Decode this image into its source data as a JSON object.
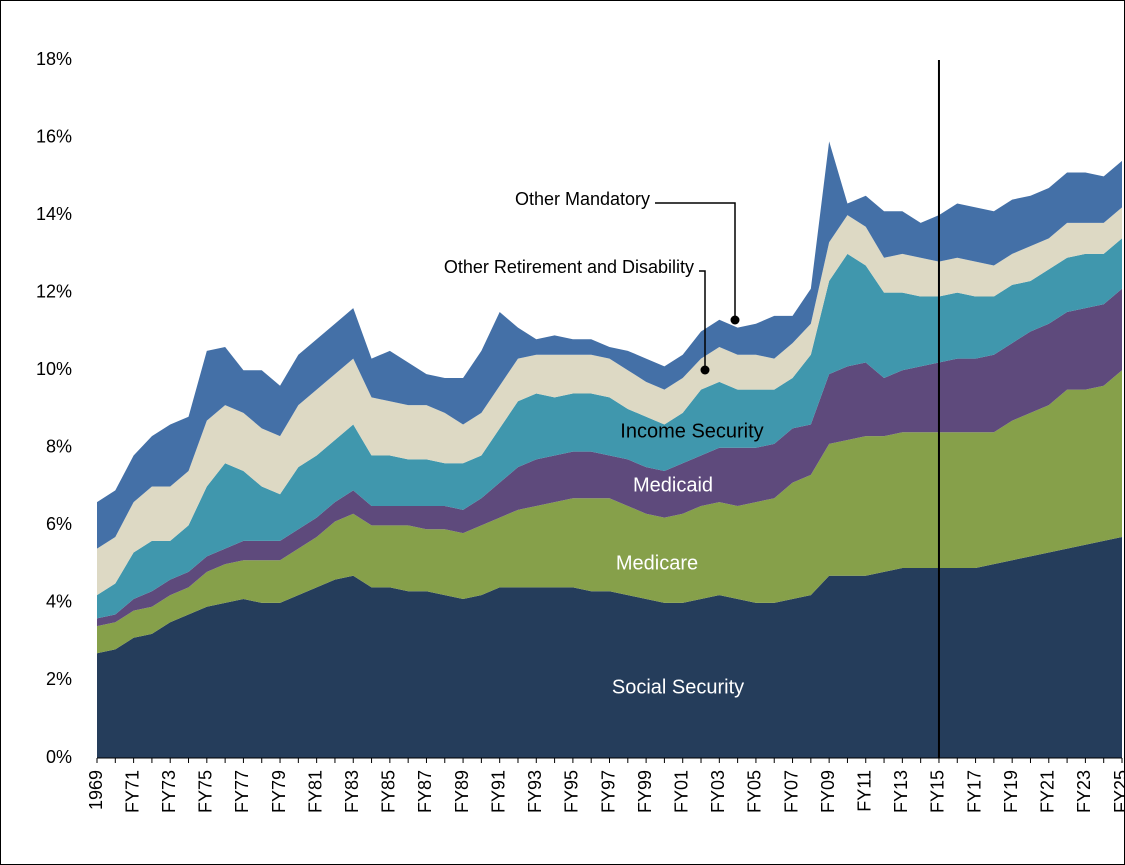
{
  "chart_data": {
    "type": "stacked_area",
    "categories": [
      "1969",
      null,
      "FY71",
      null,
      "FY73",
      null,
      "FY75",
      null,
      "FY77",
      null,
      "FY79",
      null,
      "FY81",
      null,
      "FY83",
      null,
      "FY85",
      null,
      "FY87",
      null,
      "FY89",
      null,
      "FY91",
      null,
      "FY93",
      null,
      "FY95",
      null,
      "FY97",
      null,
      "FY99",
      null,
      "FY01",
      null,
      "FY03",
      null,
      "FY05",
      null,
      "FY07",
      null,
      "FY09",
      null,
      "FY11",
      null,
      "FY13",
      null,
      "FY15",
      null,
      "FY17",
      null,
      "FY19",
      null,
      "FY21",
      null,
      "FY23",
      null,
      "FY25"
    ],
    "series": [
      {
        "name": "Social Security",
        "color": "#253d5b",
        "values": [
          2.7,
          2.8,
          3.1,
          3.2,
          3.5,
          3.7,
          3.9,
          4.0,
          4.1,
          4.0,
          4.0,
          4.2,
          4.4,
          4.6,
          4.7,
          4.4,
          4.4,
          4.3,
          4.3,
          4.2,
          4.1,
          4.2,
          4.4,
          4.4,
          4.4,
          4.4,
          4.4,
          4.3,
          4.3,
          4.2,
          4.1,
          4.0,
          4.0,
          4.1,
          4.2,
          4.1,
          4.0,
          4.0,
          4.1,
          4.2,
          4.7,
          4.7,
          4.7,
          4.8,
          4.9,
          4.9,
          4.9,
          4.9,
          4.9,
          5.0,
          5.1,
          5.2,
          5.3,
          5.4,
          5.5,
          5.6,
          5.7
        ]
      },
      {
        "name": "Medicare",
        "color": "#86a04a",
        "values": [
          0.7,
          0.7,
          0.7,
          0.7,
          0.7,
          0.7,
          0.9,
          1.0,
          1.0,
          1.1,
          1.1,
          1.2,
          1.3,
          1.5,
          1.6,
          1.6,
          1.6,
          1.7,
          1.6,
          1.7,
          1.7,
          1.8,
          1.8,
          2.0,
          2.1,
          2.2,
          2.3,
          2.4,
          2.4,
          2.3,
          2.2,
          2.2,
          2.3,
          2.4,
          2.4,
          2.4,
          2.6,
          2.7,
          3.0,
          3.1,
          3.4,
          3.5,
          3.6,
          3.5,
          3.5,
          3.5,
          3.5,
          3.5,
          3.5,
          3.4,
          3.6,
          3.7,
          3.8,
          4.1,
          4.0,
          4.0,
          4.3
        ]
      },
      {
        "name": "Medicaid",
        "color": "#5e4a7c",
        "values": [
          0.2,
          0.2,
          0.3,
          0.4,
          0.4,
          0.4,
          0.4,
          0.4,
          0.5,
          0.5,
          0.5,
          0.5,
          0.5,
          0.5,
          0.6,
          0.5,
          0.5,
          0.5,
          0.6,
          0.6,
          0.6,
          0.7,
          0.9,
          1.1,
          1.2,
          1.2,
          1.2,
          1.2,
          1.1,
          1.2,
          1.2,
          1.2,
          1.3,
          1.3,
          1.4,
          1.5,
          1.4,
          1.4,
          1.4,
          1.3,
          1.8,
          1.9,
          1.9,
          1.5,
          1.6,
          1.7,
          1.8,
          1.9,
          1.9,
          2.0,
          2.0,
          2.1,
          2.1,
          2.0,
          2.1,
          2.1,
          2.1
        ]
      },
      {
        "name": "Income Security",
        "color": "#4097ad",
        "values": [
          0.6,
          0.8,
          1.2,
          1.3,
          1.0,
          1.2,
          1.8,
          2.2,
          1.8,
          1.4,
          1.2,
          1.6,
          1.6,
          1.6,
          1.7,
          1.3,
          1.3,
          1.2,
          1.2,
          1.1,
          1.2,
          1.1,
          1.4,
          1.7,
          1.7,
          1.5,
          1.5,
          1.5,
          1.5,
          1.3,
          1.3,
          1.2,
          1.3,
          1.7,
          1.7,
          1.5,
          1.5,
          1.4,
          1.3,
          1.8,
          2.4,
          2.9,
          2.5,
          2.2,
          2.0,
          1.8,
          1.7,
          1.7,
          1.6,
          1.5,
          1.5,
          1.3,
          1.4,
          1.4,
          1.4,
          1.3,
          1.3
        ]
      },
      {
        "name": "Other Retirement and Disability",
        "color": "#ddd9c4",
        "values": [
          1.2,
          1.2,
          1.3,
          1.4,
          1.4,
          1.4,
          1.7,
          1.5,
          1.5,
          1.5,
          1.5,
          1.6,
          1.7,
          1.7,
          1.7,
          1.5,
          1.4,
          1.4,
          1.4,
          1.3,
          1.0,
          1.1,
          1.1,
          1.1,
          1.0,
          1.1,
          1.0,
          1.0,
          1.0,
          1.0,
          0.9,
          0.9,
          0.9,
          0.8,
          0.9,
          0.9,
          0.9,
          0.8,
          0.9,
          0.8,
          1.0,
          1.0,
          1.0,
          0.9,
          1.0,
          1.0,
          0.9,
          0.9,
          0.9,
          0.8,
          0.8,
          0.9,
          0.8,
          0.9,
          0.8,
          0.8,
          0.8
        ]
      },
      {
        "name": "Other Mandatory",
        "color": "#4470a7",
        "values": [
          1.2,
          1.2,
          1.2,
          1.3,
          1.6,
          1.4,
          1.8,
          1.5,
          1.1,
          1.5,
          1.3,
          1.3,
          1.3,
          1.3,
          1.3,
          1.0,
          1.3,
          1.1,
          0.8,
          0.9,
          1.2,
          1.6,
          1.9,
          0.8,
          0.4,
          0.5,
          0.4,
          0.4,
          0.3,
          0.5,
          0.6,
          0.6,
          0.6,
          0.7,
          0.7,
          0.7,
          0.8,
          1.1,
          0.7,
          0.9,
          2.6,
          0.3,
          0.8,
          1.2,
          1.1,
          0.9,
          1.2,
          1.4,
          1.4,
          1.4,
          1.4,
          1.3,
          1.3,
          1.3,
          1.3,
          1.2,
          1.2
        ]
      }
    ],
    "ylim": [
      0,
      18
    ],
    "yticks": [
      {
        "value": 0,
        "label": "0%"
      },
      {
        "value": 2,
        "label": "2%"
      },
      {
        "value": 4,
        "label": "4%"
      },
      {
        "value": 6,
        "label": "6%"
      },
      {
        "value": 8,
        "label": "8%"
      },
      {
        "value": 10,
        "label": "10%"
      },
      {
        "value": 12,
        "label": "12%"
      },
      {
        "value": 14,
        "label": "14%"
      },
      {
        "value": 16,
        "label": "16%"
      },
      {
        "value": 18,
        "label": "18%"
      }
    ],
    "divider_category": "FY15",
    "grid": false
  }
}
